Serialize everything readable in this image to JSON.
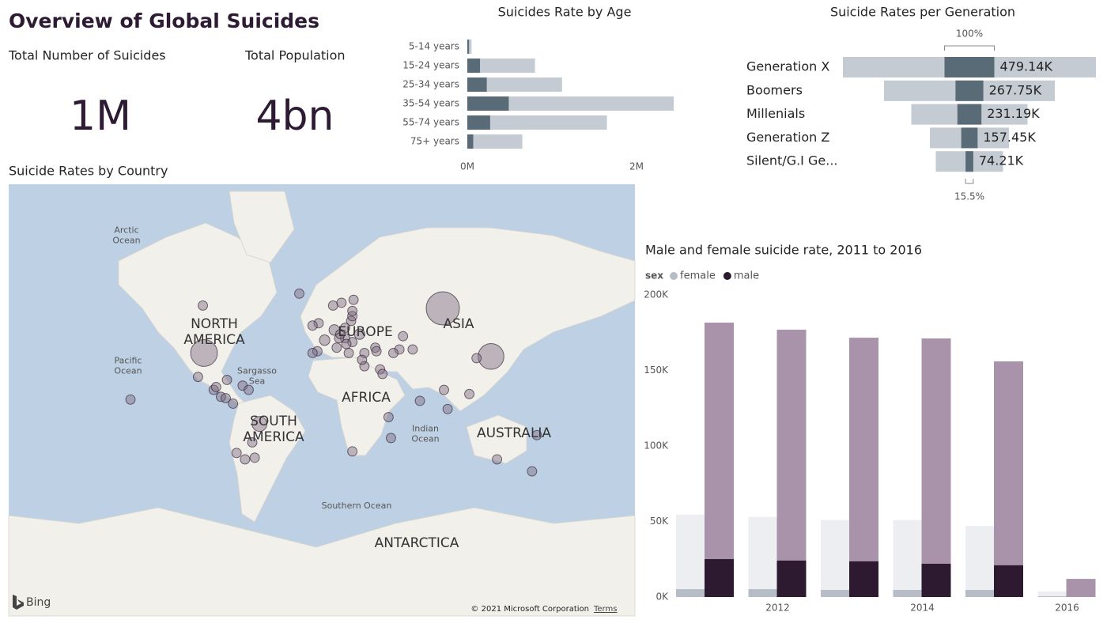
{
  "header": {
    "title": "Overview of Global Suicides"
  },
  "kpis": [
    {
      "label": "Total Number of Suicides",
      "value": "1M"
    },
    {
      "label": "Total Population",
      "value": "4bn"
    }
  ],
  "map": {
    "title": "Suicide Rates by Country",
    "labels": [
      {
        "lines": [
          "Arctic",
          "Ocean"
        ]
      },
      {
        "lines": [
          "NORTH",
          "AMERICA"
        ]
      },
      {
        "lines": [
          "Pacific",
          "Ocean"
        ]
      },
      {
        "lines": [
          "Sargasso",
          "Sea"
        ]
      },
      {
        "lines": [
          "EUROPE"
        ]
      },
      {
        "lines": [
          "ASIA"
        ]
      },
      {
        "lines": [
          "AFRICA"
        ]
      },
      {
        "lines": [
          "SOUTH",
          "AMERICA"
        ]
      },
      {
        "lines": [
          "Indian",
          "Ocean"
        ]
      },
      {
        "lines": [
          "AUSTRALIA"
        ]
      },
      {
        "lines": [
          "Southern Ocean"
        ]
      },
      {
        "lines": [
          "ANTARCTICA"
        ]
      }
    ],
    "bubble_color": "#7d6a80",
    "bubbles": [
      {
        "lon": 100,
        "lat": 60,
        "suicides": 200000
      },
      {
        "lon": 140,
        "lat": 37,
        "suicides": 120000
      },
      {
        "lon": -98,
        "lat": 39,
        "suicides": 130000
      },
      {
        "lon": -99,
        "lat": 61,
        "suicides": 16000
      },
      {
        "lon": -103,
        "lat": 24,
        "suicides": 16000
      },
      {
        "lon": -90,
        "lat": 15,
        "suicides": 16000
      },
      {
        "lon": -79,
        "lat": 22,
        "suicides": 16000
      },
      {
        "lon": -88,
        "lat": 17,
        "suicides": 16000
      },
      {
        "lon": -84,
        "lat": 10,
        "suicides": 16000
      },
      {
        "lon": -80,
        "lat": 9,
        "suicides": 16000
      },
      {
        "lon": -66,
        "lat": 18,
        "suicides": 16000
      },
      {
        "lon": -61,
        "lat": 15,
        "suicides": 16000
      },
      {
        "lon": -74,
        "lat": 5,
        "suicides": 16000
      },
      {
        "lon": -52,
        "lat": -10,
        "suicides": 40000
      },
      {
        "lon": -58,
        "lat": -23,
        "suicides": 16000
      },
      {
        "lon": -71,
        "lat": -30,
        "suicides": 16000
      },
      {
        "lon": -64,
        "lat": -34,
        "suicides": 16000
      },
      {
        "lon": -56,
        "lat": -33,
        "suicides": 16000
      },
      {
        "lon": -159,
        "lat": 8,
        "suicides": 16000
      },
      {
        "lon": -19,
        "lat": 65,
        "suicides": 16000
      },
      {
        "lon": -3,
        "lat": 54,
        "suicides": 16000
      },
      {
        "lon": -8,
        "lat": 53,
        "suicides": 16000
      },
      {
        "lon": 9,
        "lat": 61,
        "suicides": 16000
      },
      {
        "lon": 16,
        "lat": 62,
        "suicides": 16000
      },
      {
        "lon": 26,
        "lat": 63,
        "suicides": 16000
      },
      {
        "lon": 2,
        "lat": 46,
        "suicides": 20000
      },
      {
        "lon": -4,
        "lat": 40,
        "suicides": 16000
      },
      {
        "lon": -8,
        "lat": 39,
        "suicides": 16000
      },
      {
        "lon": 12,
        "lat": 42,
        "suicides": 16000
      },
      {
        "lon": 10,
        "lat": 51,
        "suicides": 20000
      },
      {
        "lon": 19,
        "lat": 52,
        "suicides": 16000
      },
      {
        "lon": 31,
        "lat": 49,
        "suicides": 20000
      },
      {
        "lon": 25,
        "lat": 45,
        "suicides": 16000
      },
      {
        "lon": 19,
        "lat": 47,
        "suicides": 16000
      },
      {
        "lon": 14,
        "lat": 47,
        "suicides": 16000
      },
      {
        "lon": 15,
        "lat": 49,
        "suicides": 16000
      },
      {
        "lon": 24,
        "lat": 55,
        "suicides": 16000
      },
      {
        "lon": 25,
        "lat": 57,
        "suicides": 16000
      },
      {
        "lon": 25,
        "lat": 59,
        "suicides": 16000
      },
      {
        "lon": 22,
        "lat": 39,
        "suicides": 16000
      },
      {
        "lon": 35,
        "lat": 39,
        "suicides": 16000
      },
      {
        "lon": 20,
        "lat": 44,
        "suicides": 16000
      },
      {
        "lon": 67,
        "lat": 48,
        "suicides": 16000
      },
      {
        "lon": 44,
        "lat": 42,
        "suicides": 16000
      },
      {
        "lon": 45,
        "lat": 40,
        "suicides": 16000
      },
      {
        "lon": 35,
        "lat": 31,
        "suicides": 16000
      },
      {
        "lon": 48,
        "lat": 29,
        "suicides": 16000
      },
      {
        "lon": 50,
        "lat": 26,
        "suicides": 16000
      },
      {
        "lon": 64,
        "lat": 41,
        "suicides": 16000
      },
      {
        "lon": 75,
        "lat": 41,
        "suicides": 16000
      },
      {
        "lon": 128,
        "lat": 36,
        "suicides": 16000
      },
      {
        "lon": 101,
        "lat": 15,
        "suicides": 16000
      },
      {
        "lon": 104,
        "lat": 1,
        "suicides": 16000
      },
      {
        "lon": 122,
        "lat": 12,
        "suicides": 16000
      },
      {
        "lon": 81,
        "lat": 7,
        "suicides": 16000
      },
      {
        "lon": 57,
        "lat": -20,
        "suicides": 16000
      },
      {
        "lon": 55,
        "lat": -5,
        "suicides": 16000
      },
      {
        "lon": 25,
        "lat": -29,
        "suicides": 16000
      },
      {
        "lon": 145,
        "lat": -34,
        "suicides": 16000
      },
      {
        "lon": 174,
        "lat": -41,
        "suicides": 16000
      },
      {
        "lon": 178,
        "lat": -18,
        "suicides": 16000
      },
      {
        "lon": 59,
        "lat": 39,
        "suicides": 16000
      },
      {
        "lon": 33,
        "lat": 35,
        "suicides": 16000
      }
    ],
    "attribution": {
      "logo": "Bing",
      "copyright": "© 2021 Microsoft Corporation",
      "terms": "Terms"
    }
  },
  "chart_data": [
    {
      "type": "hbar",
      "title": "Suicides Rate by Age",
      "categories": [
        "5-14 years",
        "15-24 years",
        "25-34 years",
        "35-54 years",
        "55-74 years",
        "75+ years"
      ],
      "series": [
        {
          "color": "#c4cbd3",
          "values": [
            0.05,
            0.8,
            1.12,
            2.44,
            1.65,
            0.65
          ]
        },
        {
          "color": "#5a6b78",
          "values": [
            0.02,
            0.15,
            0.23,
            0.49,
            0.27,
            0.07
          ]
        }
      ],
      "xlim": [
        0,
        2.5
      ],
      "xticks": [
        {
          "value": 0,
          "label": "0M"
        },
        {
          "value": 2,
          "label": "2M"
        }
      ]
    },
    {
      "type": "funnel",
      "title": "Suicide Rates per Generation",
      "categories": [
        "Generation X",
        "Boomers",
        "Millenials",
        "Generation Z",
        "Silent/G.I Ge..."
      ],
      "series": [
        {
          "color": "#c4cbd3",
          "values": [
            2434000,
            1643000,
            1118000,
            760000,
            647000
          ]
        },
        {
          "color": "#5a6b78",
          "values": [
            479140,
            267750,
            231190,
            157450,
            74210
          ],
          "value_labels": [
            "479.14K",
            "267.75K",
            "231.19K",
            "157.45K",
            "74.21K"
          ]
        }
      ],
      "annotations": {
        "top": "100%",
        "bottom": "15.5%"
      }
    },
    {
      "type": "column",
      "title": "Male and female suicide rate, 2011 to 2016",
      "legend_title": "sex",
      "categories": [
        null,
        2012,
        null,
        2014,
        null,
        2016
      ],
      "series": [
        {
          "color": "#eceef1",
          "values": [
            54500,
            53000,
            51000,
            51000,
            47000,
            3700
          ]
        },
        {
          "name": "female",
          "color": "#b7bdc6",
          "values": [
            5200,
            5200,
            4700,
            4700,
            4700,
            500
          ]
        },
        {
          "color": "#a893ab",
          "values": [
            181700,
            177000,
            171700,
            171200,
            156000,
            12000
          ]
        },
        {
          "name": "male",
          "color": "#2e1a30",
          "values": [
            25100,
            24100,
            23600,
            22000,
            21000,
            null
          ]
        }
      ],
      "ylim": [
        0,
        200000
      ],
      "yticks": [
        {
          "value": 0,
          "label": "0K"
        },
        {
          "value": 50000,
          "label": "50K"
        },
        {
          "value": 100000,
          "label": "100K"
        },
        {
          "value": 150000,
          "label": "150K"
        },
        {
          "value": 200000,
          "label": "200K"
        }
      ]
    }
  ]
}
